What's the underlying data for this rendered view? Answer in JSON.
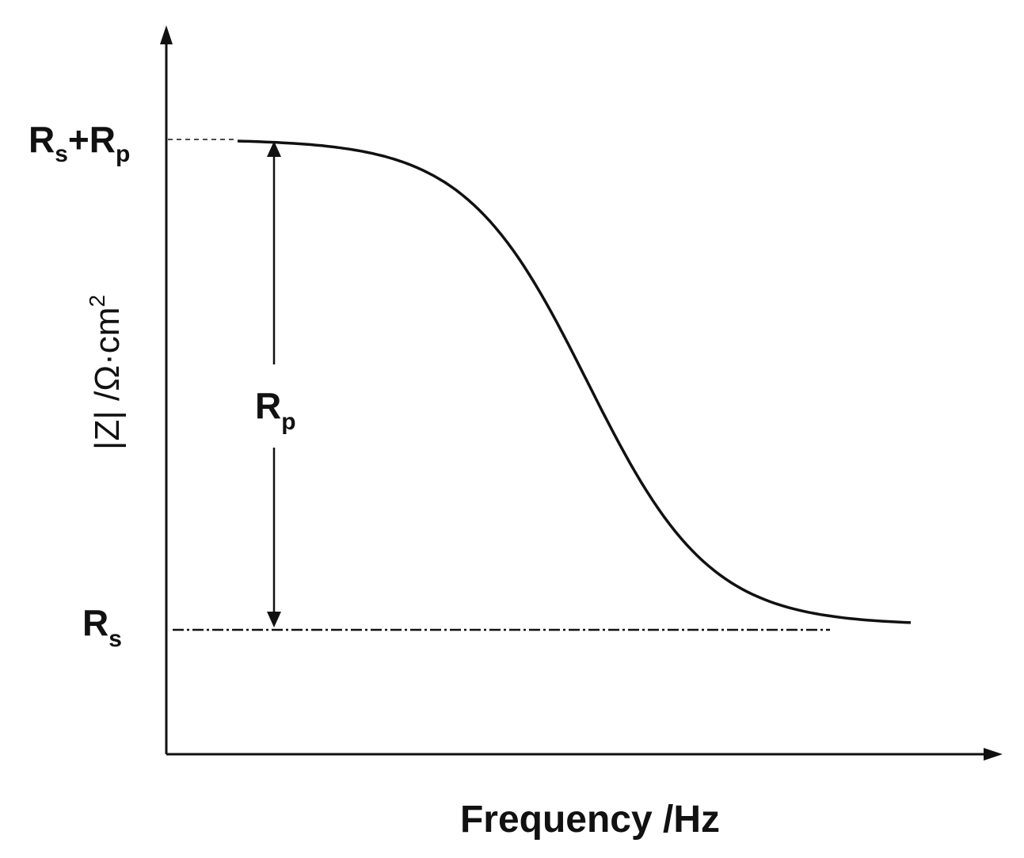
{
  "chart_data": {
    "type": "line",
    "title": "",
    "xlabel": "Frequency /Hz",
    "ylabel": "|Z| /Ω·cm",
    "ylabel_superscript": "2",
    "x_scale": "log",
    "grid": false,
    "legend": "none",
    "annotations": {
      "rs_rp": {
        "main": "R",
        "sub1": "s",
        "plus": "+R",
        "sub2": "p"
      },
      "rp": {
        "main": "R",
        "sub": "p"
      },
      "rs": {
        "main": "R",
        "sub": "s"
      }
    },
    "model": {
      "rs": 1,
      "rp": 5
    },
    "series": [
      {
        "x_log_range": [
          -2,
          6
        ],
        "y_levels": {
          "low_freq": 6,
          "high_freq": 1
        }
      }
    ],
    "colors": {
      "line": "#111111",
      "background": "#ffffff"
    }
  }
}
